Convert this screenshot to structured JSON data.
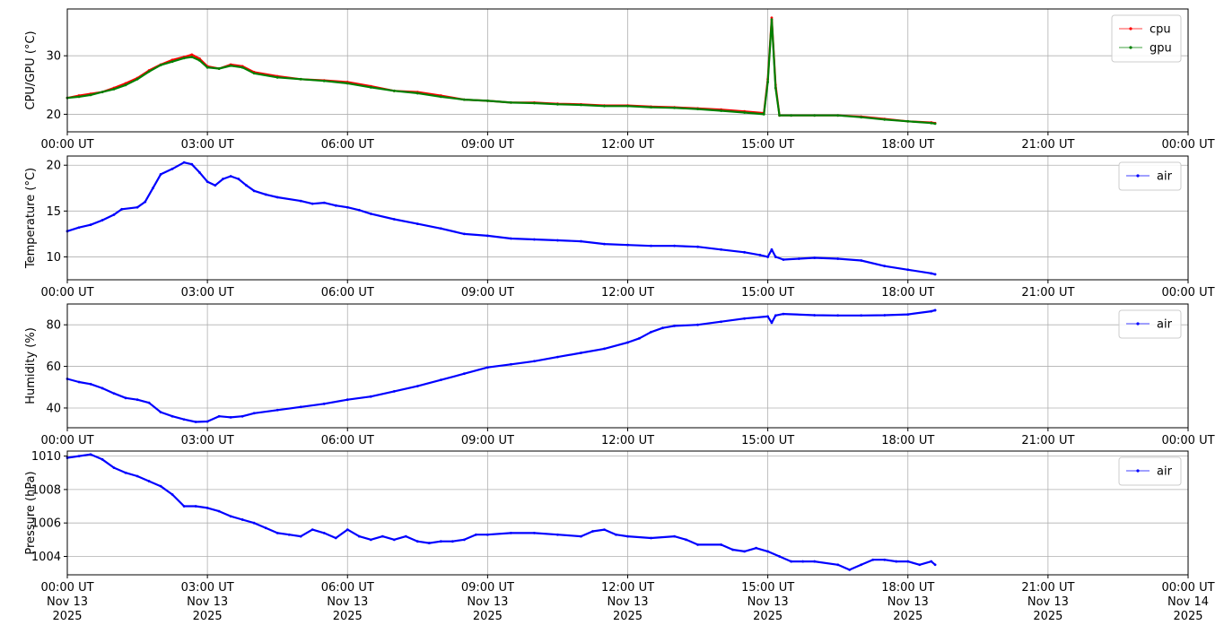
{
  "chart_data": [
    {
      "type": "line",
      "ylabel": "CPU/GPU (°C)",
      "xlim": [
        "2025-11-13T00:00",
        "2025-11-14T00:00"
      ],
      "ylim": [
        17,
        38
      ],
      "yticks": [
        20,
        30
      ],
      "grid": true,
      "legend": "top-right",
      "xtick_labels": [
        "00:00 UT",
        "03:00 UT",
        "06:00 UT",
        "09:00 UT",
        "12:00 UT",
        "15:00 UT",
        "18:00 UT",
        "21:00 UT",
        "00:00 UT"
      ],
      "series": [
        {
          "name": "cpu",
          "color": "#ff0000",
          "x": [
            "00:00",
            "00:15",
            "00:30",
            "00:45",
            "01:00",
            "01:15",
            "01:30",
            "01:45",
            "02:00",
            "02:15",
            "02:30",
            "02:40",
            "02:50",
            "03:00",
            "03:15",
            "03:30",
            "03:45",
            "04:00",
            "04:30",
            "05:00",
            "05:30",
            "06:00",
            "06:30",
            "07:00",
            "07:30",
            "08:00",
            "08:30",
            "09:00",
            "09:30",
            "10:00",
            "10:30",
            "11:00",
            "11:30",
            "12:00",
            "12:30",
            "13:00",
            "13:30",
            "14:00",
            "14:30",
            "14:55",
            "15:00",
            "15:05",
            "15:10",
            "15:15",
            "15:30",
            "16:00",
            "16:30",
            "17:00",
            "17:30",
            "18:00",
            "18:30",
            "18:35"
          ],
          "values": [
            22.8,
            23.2,
            23.5,
            23.8,
            24.5,
            25.3,
            26.2,
            27.5,
            28.5,
            29.3,
            29.8,
            30.2,
            29.5,
            28.2,
            27.8,
            28.5,
            28.2,
            27.2,
            26.5,
            26.0,
            25.8,
            25.5,
            24.8,
            24.0,
            23.8,
            23.2,
            22.5,
            22.3,
            22.0,
            22.0,
            21.8,
            21.7,
            21.5,
            21.5,
            21.3,
            21.2,
            21.0,
            20.8,
            20.5,
            20.2,
            26.0,
            36.5,
            25.0,
            19.8,
            19.8,
            19.8,
            19.8,
            19.6,
            19.2,
            18.8,
            18.6,
            18.5
          ]
        },
        {
          "name": "gpu",
          "color": "#008000",
          "x": [
            "00:00",
            "00:15",
            "00:30",
            "00:45",
            "01:00",
            "01:15",
            "01:30",
            "01:45",
            "02:00",
            "02:15",
            "02:30",
            "02:40",
            "02:50",
            "03:00",
            "03:15",
            "03:30",
            "03:45",
            "04:00",
            "04:30",
            "05:00",
            "05:30",
            "06:00",
            "06:30",
            "07:00",
            "07:30",
            "08:00",
            "08:30",
            "09:00",
            "09:30",
            "10:00",
            "10:30",
            "11:00",
            "11:30",
            "12:00",
            "12:30",
            "13:00",
            "13:30",
            "14:00",
            "14:30",
            "14:55",
            "15:00",
            "15:05",
            "15:10",
            "15:15",
            "15:30",
            "16:00",
            "16:30",
            "17:00",
            "17:30",
            "18:00",
            "18:30",
            "18:35"
          ],
          "values": [
            22.8,
            23.0,
            23.3,
            23.8,
            24.3,
            25.0,
            26.0,
            27.3,
            28.4,
            29.0,
            29.6,
            29.8,
            29.2,
            28.0,
            27.8,
            28.3,
            28.0,
            27.0,
            26.3,
            26.0,
            25.7,
            25.3,
            24.6,
            24.0,
            23.6,
            23.0,
            22.5,
            22.3,
            22.0,
            21.9,
            21.7,
            21.6,
            21.4,
            21.4,
            21.2,
            21.1,
            20.9,
            20.6,
            20.3,
            20.0,
            25.5,
            36.2,
            24.5,
            19.8,
            19.8,
            19.8,
            19.8,
            19.5,
            19.1,
            18.8,
            18.5,
            18.4
          ]
        }
      ]
    },
    {
      "type": "line",
      "ylabel": "Temperature (°C)",
      "xlim": [
        "2025-11-13T00:00",
        "2025-11-14T00:00"
      ],
      "ylim": [
        7.5,
        21
      ],
      "yticks": [
        10,
        15,
        20
      ],
      "grid": true,
      "legend": "top-right",
      "xtick_labels": [
        "00:00 UT",
        "03:00 UT",
        "06:00 UT",
        "09:00 UT",
        "12:00 UT",
        "15:00 UT",
        "18:00 UT",
        "21:00 UT",
        "00:00 UT"
      ],
      "series": [
        {
          "name": "air",
          "color": "#0000ff",
          "x": [
            "00:00",
            "00:15",
            "00:30",
            "00:45",
            "01:00",
            "01:10",
            "01:30",
            "01:40",
            "01:50",
            "02:00",
            "02:15",
            "02:30",
            "02:40",
            "02:50",
            "03:00",
            "03:10",
            "03:20",
            "03:30",
            "03:40",
            "03:50",
            "04:00",
            "04:15",
            "04:30",
            "05:00",
            "05:15",
            "05:30",
            "05:45",
            "06:00",
            "06:15",
            "06:30",
            "07:00",
            "07:30",
            "08:00",
            "08:30",
            "09:00",
            "09:30",
            "10:00",
            "10:30",
            "11:00",
            "11:30",
            "12:00",
            "12:30",
            "13:00",
            "13:30",
            "14:00",
            "14:30",
            "14:50",
            "15:00",
            "15:05",
            "15:10",
            "15:20",
            "15:40",
            "16:00",
            "16:30",
            "17:00",
            "17:30",
            "18:00",
            "18:30",
            "18:35"
          ],
          "values": [
            12.8,
            13.2,
            13.5,
            14.0,
            14.6,
            15.2,
            15.4,
            16.0,
            17.5,
            19.0,
            19.6,
            20.3,
            20.1,
            19.2,
            18.2,
            17.8,
            18.5,
            18.8,
            18.5,
            17.8,
            17.2,
            16.8,
            16.5,
            16.1,
            15.8,
            15.9,
            15.6,
            15.4,
            15.1,
            14.7,
            14.1,
            13.6,
            13.1,
            12.5,
            12.3,
            12.0,
            11.9,
            11.8,
            11.7,
            11.4,
            11.3,
            11.2,
            11.2,
            11.1,
            10.8,
            10.5,
            10.2,
            10.0,
            10.8,
            10.0,
            9.7,
            9.8,
            9.9,
            9.8,
            9.6,
            9.0,
            8.6,
            8.2,
            8.1
          ]
        }
      ]
    },
    {
      "type": "line",
      "ylabel": "Humidity (%)",
      "xlim": [
        "2025-11-13T00:00",
        "2025-11-14T00:00"
      ],
      "ylim": [
        30.5,
        90
      ],
      "yticks": [
        40,
        60,
        80
      ],
      "grid": true,
      "legend": "top-right",
      "xtick_labels": [
        "00:00 UT",
        "03:00 UT",
        "06:00 UT",
        "09:00 UT",
        "12:00 UT",
        "15:00 UT",
        "18:00 UT",
        "21:00 UT",
        "00:00 UT"
      ],
      "series": [
        {
          "name": "air",
          "color": "#0000ff",
          "x": [
            "00:00",
            "00:15",
            "00:30",
            "00:45",
            "01:00",
            "01:15",
            "01:30",
            "01:45",
            "02:00",
            "02:15",
            "02:30",
            "02:45",
            "03:00",
            "03:15",
            "03:30",
            "03:45",
            "04:00",
            "04:30",
            "05:00",
            "05:30",
            "06:00",
            "06:30",
            "07:00",
            "07:30",
            "08:00",
            "08:30",
            "09:00",
            "09:30",
            "10:00",
            "10:30",
            "11:00",
            "11:30",
            "12:00",
            "12:15",
            "12:30",
            "12:45",
            "13:00",
            "13:30",
            "14:00",
            "14:30",
            "15:00",
            "15:05",
            "15:10",
            "15:20",
            "16:00",
            "16:30",
            "17:00",
            "17:30",
            "18:00",
            "18:30",
            "18:35"
          ],
          "values": [
            54.0,
            52.5,
            51.5,
            49.5,
            47.0,
            44.8,
            44.0,
            42.5,
            38.0,
            36.0,
            34.5,
            33.3,
            33.5,
            36.0,
            35.5,
            36.0,
            37.5,
            39.0,
            40.5,
            42.0,
            44.0,
            45.5,
            48.0,
            50.5,
            53.5,
            56.5,
            59.5,
            61.0,
            62.5,
            64.5,
            66.5,
            68.5,
            71.5,
            73.5,
            76.5,
            78.5,
            79.5,
            80.0,
            81.5,
            83.0,
            84.0,
            81.0,
            84.5,
            85.2,
            84.6,
            84.5,
            84.5,
            84.6,
            85.0,
            86.5,
            87.0
          ]
        }
      ]
    },
    {
      "type": "line",
      "ylabel": "Pressure (hPa)",
      "xlim": [
        "2025-11-13T00:00",
        "2025-11-14T00:00"
      ],
      "ylim": [
        1002.9,
        1010.3
      ],
      "yticks": [
        1004,
        1006,
        1008,
        1010
      ],
      "grid": true,
      "legend": "top-right",
      "xtick_labels": [
        "00:00 UT\nNov 13\n2025",
        "03:00 UT\nNov 13\n2025",
        "06:00 UT\nNov 13\n2025",
        "09:00 UT\nNov 13\n2025",
        "12:00 UT\nNov 13\n2025",
        "15:00 UT\nNov 13\n2025",
        "18:00 UT\nNov 13\n2025",
        "21:00 UT\nNov 13\n2025",
        "00:00 UT\nNov 14\n2025"
      ],
      "series": [
        {
          "name": "air",
          "color": "#0000ff",
          "x": [
            "00:00",
            "00:15",
            "00:30",
            "00:45",
            "01:00",
            "01:15",
            "01:30",
            "01:45",
            "02:00",
            "02:15",
            "02:30",
            "02:45",
            "03:00",
            "03:15",
            "03:30",
            "03:45",
            "04:00",
            "04:15",
            "04:30",
            "04:45",
            "05:00",
            "05:15",
            "05:30",
            "05:45",
            "06:00",
            "06:15",
            "06:30",
            "06:45",
            "07:00",
            "07:15",
            "07:30",
            "07:45",
            "08:00",
            "08:15",
            "08:30",
            "08:45",
            "09:00",
            "09:30",
            "10:00",
            "10:30",
            "11:00",
            "11:15",
            "11:30",
            "11:45",
            "12:00",
            "12:30",
            "13:00",
            "13:15",
            "13:30",
            "14:00",
            "14:15",
            "14:30",
            "14:45",
            "15:00",
            "15:15",
            "15:30",
            "15:45",
            "16:00",
            "16:30",
            "16:45",
            "17:00",
            "17:15",
            "17:30",
            "17:45",
            "18:00",
            "18:15",
            "18:30",
            "18:35"
          ],
          "values": [
            1009.9,
            1010.0,
            1010.1,
            1009.8,
            1009.3,
            1009.0,
            1008.8,
            1008.5,
            1008.2,
            1007.7,
            1007.0,
            1007.0,
            1006.9,
            1006.7,
            1006.4,
            1006.2,
            1006.0,
            1005.7,
            1005.4,
            1005.3,
            1005.2,
            1005.6,
            1005.4,
            1005.1,
            1005.6,
            1005.2,
            1005.0,
            1005.2,
            1005.0,
            1005.2,
            1004.9,
            1004.8,
            1004.9,
            1004.9,
            1005.0,
            1005.3,
            1005.3,
            1005.4,
            1005.4,
            1005.3,
            1005.2,
            1005.5,
            1005.6,
            1005.3,
            1005.2,
            1005.1,
            1005.2,
            1005.0,
            1004.7,
            1004.7,
            1004.4,
            1004.3,
            1004.5,
            1004.3,
            1004.0,
            1003.7,
            1003.7,
            1003.7,
            1003.5,
            1003.2,
            1003.5,
            1003.8,
            1003.8,
            1003.7,
            1003.7,
            1003.5,
            1003.7,
            1003.5
          ]
        }
      ]
    }
  ]
}
